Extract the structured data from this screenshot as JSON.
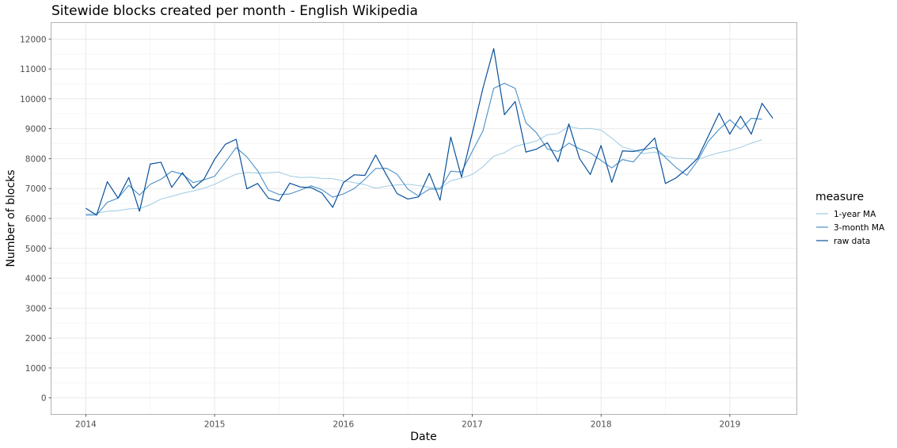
{
  "chart_data": {
    "type": "line",
    "title": "Sitewide blocks created per month - English Wikipedia",
    "xlabel": "Date",
    "ylabel": "Number of blocks",
    "xlim": [
      2013.73,
      2019.52
    ],
    "ylim": [
      -550,
      12550
    ],
    "x_ticks": [
      2014,
      2015,
      2016,
      2017,
      2018,
      2019
    ],
    "y_ticks": [
      0,
      1000,
      2000,
      3000,
      4000,
      5000,
      6000,
      7000,
      8000,
      9000,
      10000,
      11000,
      12000
    ],
    "grid": true,
    "legend": {
      "title": "measure",
      "position": "right"
    },
    "x_start": 2014.0,
    "x_step": 0.08333,
    "series": [
      {
        "name": "1-year MA",
        "color": "#9ecae1",
        "values": [
          6150,
          6180,
          6240,
          6260,
          6320,
          6330,
          6460,
          6650,
          6740,
          6840,
          6920,
          7010,
          7140,
          7320,
          7480,
          7540,
          7520,
          7530,
          7550,
          7420,
          7370,
          7380,
          7340,
          7330,
          7250,
          7200,
          7130,
          7010,
          7080,
          7120,
          7140,
          7100,
          7040,
          7020,
          7260,
          7350,
          7470,
          7730,
          8080,
          8200,
          8410,
          8500,
          8590,
          8800,
          8840,
          9080,
          9000,
          9010,
          8950,
          8690,
          8390,
          8290,
          8170,
          8220,
          8090,
          8010,
          8000,
          7980,
          8090,
          8200,
          8270,
          8380,
          8520,
          8630
        ]
      },
      {
        "name": "3-month MA",
        "color": "#4a90c8",
        "values": [
          6110,
          6120,
          6540,
          6680,
          7110,
          6780,
          7140,
          7310,
          7580,
          7480,
          7200,
          7290,
          7410,
          7880,
          8370,
          8060,
          7600,
          6950,
          6800,
          6820,
          6950,
          7090,
          6960,
          6710,
          6820,
          7000,
          7310,
          7670,
          7680,
          7480,
          6980,
          6750,
          6980,
          6980,
          7580,
          7550,
          8240,
          8930,
          10350,
          10520,
          10350,
          9200,
          8860,
          8320,
          8240,
          8520,
          8330,
          8190,
          7940,
          7690,
          7970,
          7890,
          8300,
          8380,
          8040,
          7700,
          7440,
          7930,
          8580,
          8980,
          9300,
          8980,
          9350,
          9320
        ]
      },
      {
        "name": "raw data",
        "color": "#08519c",
        "values": [
          6340,
          6110,
          7230,
          6680,
          7370,
          6240,
          7820,
          7880,
          7040,
          7530,
          7010,
          7310,
          7980,
          8480,
          8650,
          6990,
          7170,
          6680,
          6580,
          7180,
          7050,
          7030,
          6850,
          6370,
          7200,
          7460,
          7440,
          8120,
          7460,
          6830,
          6650,
          6720,
          7510,
          6610,
          8720,
          7380,
          8840,
          10360,
          11680,
          9470,
          9910,
          8220,
          8320,
          8530,
          7900,
          9160,
          8000,
          7470,
          8440,
          7210,
          8260,
          8240,
          8310,
          8690,
          7170,
          7360,
          7660,
          8010,
          8760,
          9520,
          8820,
          9420,
          8820,
          9850,
          9350
        ]
      }
    ]
  }
}
